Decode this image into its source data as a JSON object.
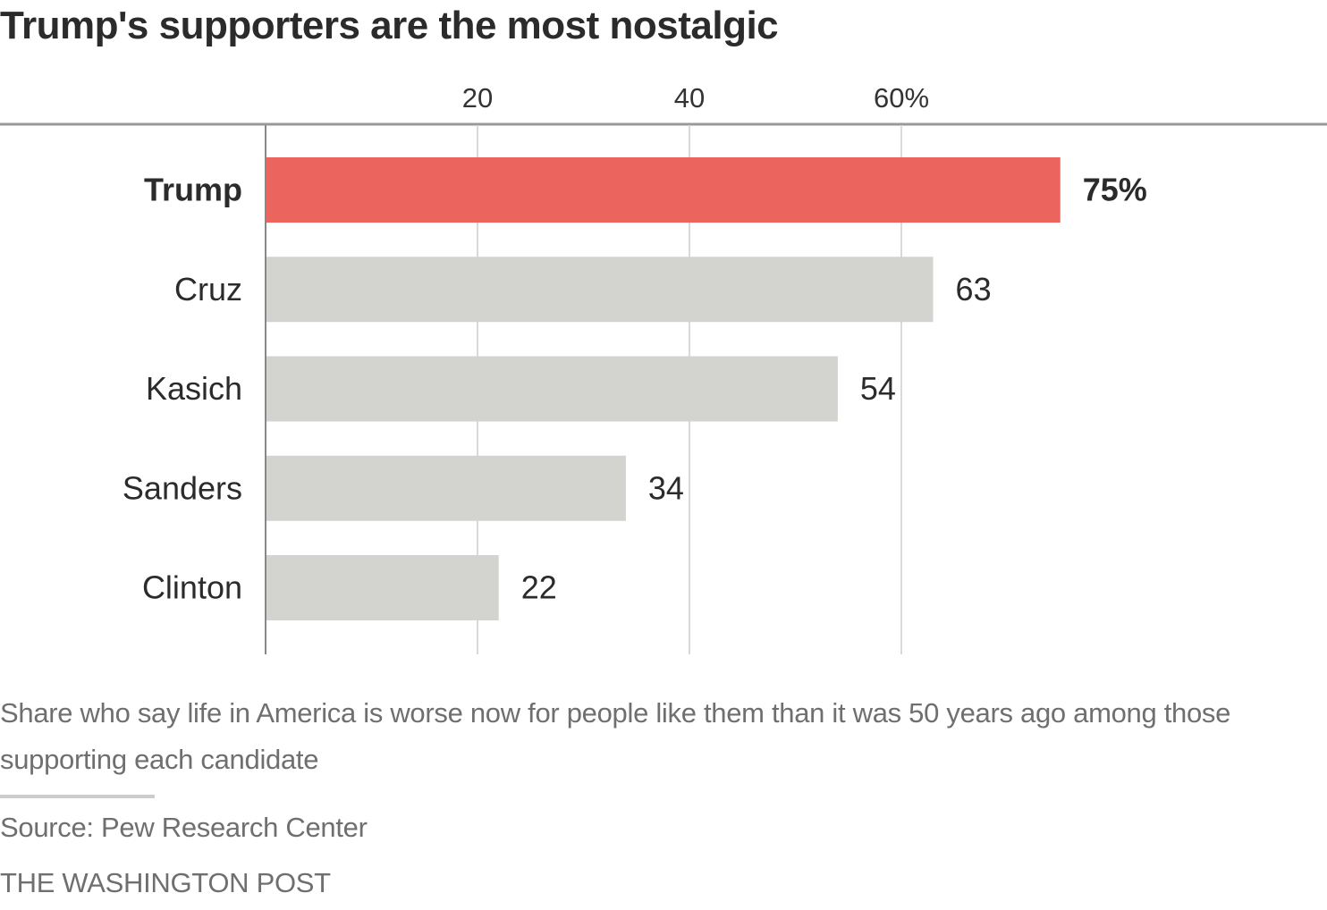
{
  "chart_data": {
    "type": "bar",
    "orientation": "horizontal",
    "title": "Trump's supporters are the most nostalgic",
    "categories": [
      "Trump",
      "Cruz",
      "Kasich",
      "Sanders",
      "Clinton"
    ],
    "values": [
      75,
      63,
      54,
      34,
      22
    ],
    "value_labels": [
      "75%",
      "63",
      "54",
      "34",
      "22"
    ],
    "highlight": "Trump",
    "colors": {
      "highlight": "#eb645e",
      "default": "#d3d3cf",
      "grid": "#d9d9d9",
      "axis": "#888888",
      "text": "#2b2b2b"
    },
    "xaxis": {
      "ticks": [
        20,
        40,
        60
      ],
      "tick_labels": [
        "20",
        "40",
        "60%"
      ],
      "range": [
        0,
        80
      ],
      "position": "top"
    },
    "grid": true,
    "xlabel": "",
    "ylabel": "",
    "description": "Share who say life in America is worse now for people like them than it was 50 years ago among those supporting each candidate",
    "source": "Source: Pew Research Center",
    "credit": "THE WASHINGTON POST"
  }
}
